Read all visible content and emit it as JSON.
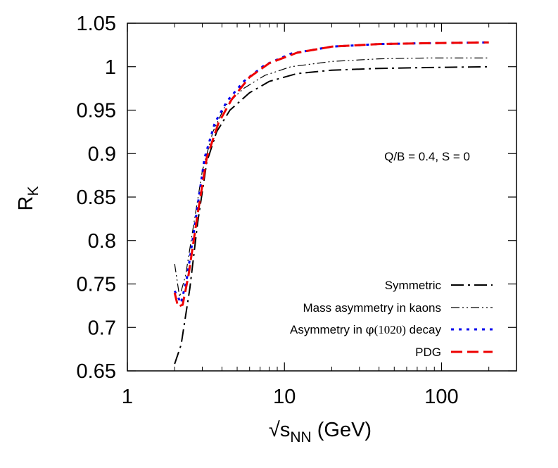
{
  "chart_data": {
    "type": "line",
    "xscale": "log",
    "xlim": [
      1,
      300
    ],
    "ylim": [
      0.65,
      1.05
    ],
    "xticks": [
      1,
      10,
      100
    ],
    "xtick_labels": [
      "1",
      "10",
      "100"
    ],
    "yticks": [
      0.65,
      0.7,
      0.75,
      0.8,
      0.85,
      0.9,
      0.95,
      1.0,
      1.05
    ],
    "ytick_labels": [
      "0.65",
      "0.7",
      "0.75",
      "0.8",
      "0.85",
      "0.9",
      "0.95",
      "1",
      "1.05"
    ],
    "xlabel": {
      "radical": "√",
      "sub_base": "s",
      "sub": "NN",
      "unit": " (GeV)"
    },
    "ylabel": {
      "base": "R",
      "sub": "K"
    },
    "annotation": "Q/B = 0.4, S = 0",
    "grid": false,
    "legend_position": "bottom-right",
    "series": [
      {
        "name": "Symmetric",
        "color": "#000000",
        "dash": "dash-dot",
        "x": [
          2.0,
          2.2,
          2.5,
          2.8,
          3.2,
          3.7,
          4.5,
          6,
          8,
          12,
          20,
          40,
          80,
          200
        ],
        "y": [
          0.658,
          0.68,
          0.745,
          0.82,
          0.89,
          0.925,
          0.95,
          0.97,
          0.983,
          0.992,
          0.996,
          0.998,
          0.999,
          1.0
        ]
      },
      {
        "name": "Mass asymmetry in kaons",
        "color": "#000000",
        "dash": "dash-dot-dot",
        "x": [
          2.0,
          2.15,
          2.35,
          2.6,
          3.0,
          3.5,
          4.2,
          5.5,
          7.5,
          11,
          20,
          40,
          80,
          200
        ],
        "y": [
          0.773,
          0.735,
          0.76,
          0.81,
          0.88,
          0.925,
          0.955,
          0.975,
          0.99,
          1.0,
          1.006,
          1.009,
          1.01,
          1.01
        ]
      },
      {
        "name": {
          "prefix": "Asymmetry in ",
          "phi": "φ",
          "mass": "(1020)",
          "suffix": " decay"
        },
        "color": "#0000ee",
        "dash": "dotted",
        "x": [
          2.0,
          2.2,
          2.4,
          2.7,
          3.1,
          3.6,
          4.3,
          5.5,
          7.5,
          11,
          20,
          40,
          80,
          200
        ],
        "y": [
          0.742,
          0.728,
          0.758,
          0.82,
          0.895,
          0.935,
          0.96,
          0.983,
          1.002,
          1.015,
          1.023,
          1.026,
          1.027,
          1.028
        ]
      },
      {
        "name": "PDG",
        "color": "#ee0000",
        "dash": "dashed",
        "x": [
          2.0,
          2.1,
          2.25,
          2.45,
          2.8,
          3.2,
          3.8,
          4.6,
          6,
          8,
          12,
          20,
          40,
          80,
          200
        ],
        "y": [
          0.74,
          0.724,
          0.726,
          0.76,
          0.83,
          0.895,
          0.935,
          0.962,
          0.988,
          1.004,
          1.016,
          1.023,
          1.026,
          1.027,
          1.028
        ]
      }
    ]
  }
}
